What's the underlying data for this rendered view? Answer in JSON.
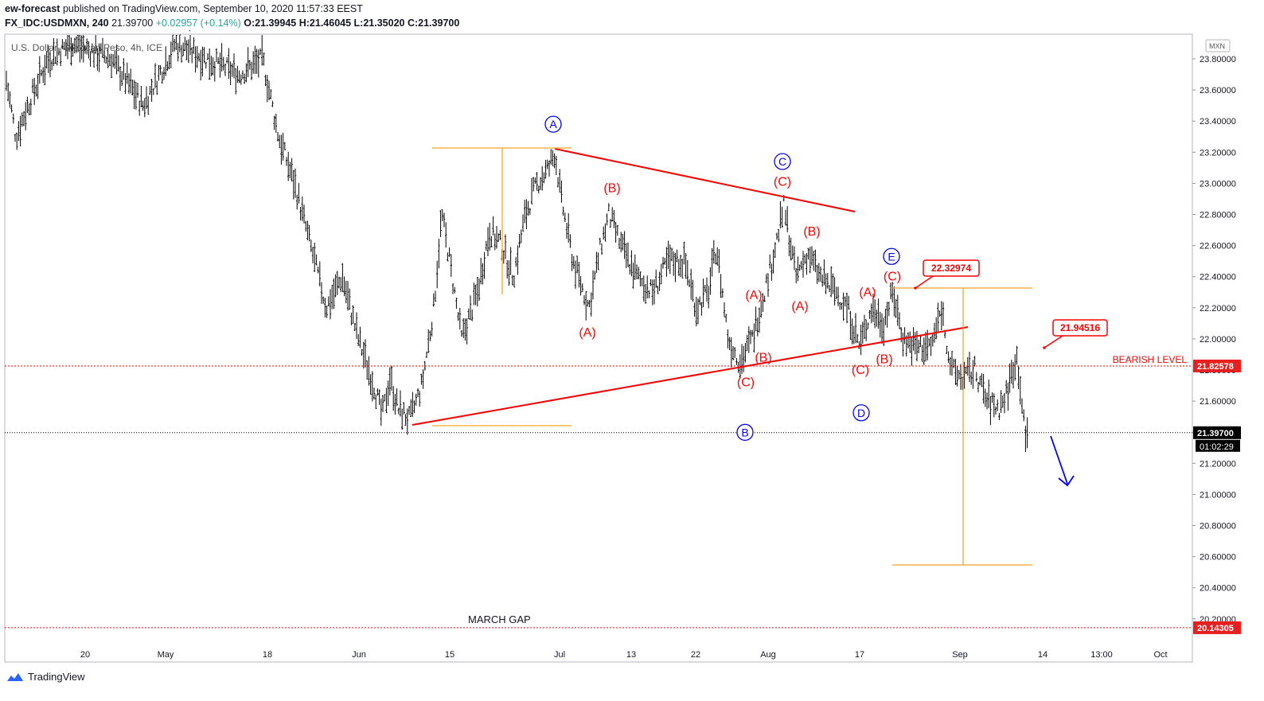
{
  "header": {
    "author": "ew-forecast",
    "published_text": "published on TradingView.com, September 10, 2020 11:57:33 EEST",
    "symbol_line": "FX_IDC:USDMXN, 240",
    "last": "21.39700",
    "change": "+0.02957 (+0.14%)",
    "open": "O:21.39945",
    "high": "H:21.46045",
    "low": "L:21.35020",
    "close": "C:21.39700"
  },
  "watermark": "U.S. Dollar / Mexican Peso, 4h, ICE",
  "footer": {
    "brand": "TradingView"
  },
  "colors": {
    "red": "#ff0000",
    "orange": "#f5a623",
    "blue": "#0000ff",
    "bars": "#000000"
  },
  "chart_data": {
    "type": "bar",
    "title": "U.S. Dollar / Mexican Peso, 4h, ICE",
    "currency": "MXN",
    "y_ticks": [
      "23.80000",
      "23.60000",
      "23.40000",
      "23.20000",
      "23.00000",
      "22.80000",
      "22.60000",
      "22.40000",
      "22.20000",
      "22.00000",
      "21.80000",
      "21.60000",
      "21.40000",
      "21.20000",
      "21.00000",
      "20.80000",
      "20.60000",
      "20.40000",
      "20.20000"
    ],
    "x_ticks": [
      "20",
      "May",
      "18",
      "Jun",
      "15",
      "Jul",
      "13",
      "22",
      "Aug",
      "17",
      "Sep",
      "14",
      "13:00",
      "Oct"
    ],
    "ylim": [
      20.0,
      23.9
    ],
    "series": [
      {
        "values": [
          [
            0,
            23.9
          ],
          [
            20,
            23.3
          ],
          [
            35,
            23.5
          ],
          [
            60,
            23.8
          ],
          [
            90,
            23.9
          ],
          [
            140,
            23.8
          ],
          [
            180,
            23.5
          ],
          [
            220,
            23.9
          ],
          [
            260,
            23.8
          ],
          [
            300,
            23.7
          ],
          [
            330,
            23.8
          ],
          [
            350,
            23.3
          ],
          [
            370,
            23.0
          ],
          [
            390,
            22.6
          ],
          [
            410,
            22.2
          ],
          [
            430,
            22.4
          ],
          [
            450,
            22.0
          ],
          [
            470,
            21.7
          ],
          [
            480,
            21.5
          ],
          [
            490,
            21.75
          ],
          [
            500,
            21.55
          ],
          [
            515,
            21.48
          ],
          [
            530,
            21.7
          ],
          [
            545,
            22.2
          ],
          [
            555,
            22.8
          ],
          [
            565,
            22.5
          ],
          [
            580,
            22.0
          ],
          [
            600,
            22.3
          ],
          [
            615,
            22.7
          ],
          [
            630,
            22.6
          ],
          [
            645,
            22.4
          ],
          [
            660,
            22.8
          ],
          [
            675,
            23.0
          ],
          [
            690,
            23.1
          ],
          [
            697,
            23.2
          ],
          [
            705,
            22.9
          ],
          [
            720,
            22.5
          ],
          [
            740,
            22.2
          ],
          [
            755,
            22.6
          ],
          [
            765,
            22.8
          ],
          [
            780,
            22.6
          ],
          [
            800,
            22.4
          ],
          [
            820,
            22.3
          ],
          [
            840,
            22.5
          ],
          [
            860,
            22.5
          ],
          [
            875,
            22.2
          ],
          [
            890,
            22.3
          ],
          [
            900,
            22.6
          ],
          [
            915,
            22.0
          ],
          [
            930,
            21.85
          ],
          [
            945,
            22.0
          ],
          [
            960,
            22.3
          ],
          [
            970,
            22.5
          ],
          [
            985,
            22.85
          ],
          [
            1000,
            22.4
          ],
          [
            1015,
            22.55
          ],
          [
            1030,
            22.4
          ],
          [
            1050,
            22.3
          ],
          [
            1065,
            22.2
          ],
          [
            1080,
            21.95
          ],
          [
            1095,
            22.2
          ],
          [
            1110,
            22.1
          ],
          [
            1122,
            22.3
          ],
          [
            1135,
            22.0
          ],
          [
            1150,
            21.95
          ],
          [
            1170,
            21.95
          ],
          [
            1183,
            22.2
          ],
          [
            1195,
            21.8
          ],
          [
            1210,
            21.75
          ],
          [
            1225,
            21.8
          ],
          [
            1240,
            21.6
          ],
          [
            1255,
            21.55
          ],
          [
            1265,
            21.65
          ],
          [
            1277,
            21.9
          ],
          [
            1282,
            21.7
          ],
          [
            1288,
            21.35
          ],
          [
            1292,
            21.39
          ]
        ]
      }
    ],
    "annotations": {
      "blue_circles": [
        {
          "label": "A",
          "price": 23.38
        },
        {
          "label": "C",
          "price": 23.14
        },
        {
          "label": "E",
          "price": 22.53
        },
        {
          "label": "D",
          "price": 21.53
        },
        {
          "label": "B",
          "price": 21.43
        }
      ],
      "red_labels": [
        {
          "label": "(B)",
          "price": 22.97
        },
        {
          "label": "(C)",
          "price": 23.01
        },
        {
          "label": "(B)",
          "price": 22.69
        },
        {
          "label": "(A)",
          "price": 22.04
        },
        {
          "label": "(A)",
          "price": 22.28
        },
        {
          "label": "(A)",
          "price": 22.21
        },
        {
          "label": "(A)",
          "price": 22.3
        },
        {
          "label": "(C)",
          "price": 22.4
        },
        {
          "label": "(B)",
          "price": 21.88
        },
        {
          "label": "(C)",
          "price": 21.72
        },
        {
          "label": "(C)",
          "price": 21.8
        },
        {
          "label": "(B)",
          "price": 21.87
        }
      ],
      "price_boxes": [
        "22.32974",
        "21.94516"
      ],
      "bearish_level": {
        "label": "BEARISH LEVEL",
        "price": "21.82578"
      },
      "march_gap": {
        "label": "MARCH GAP",
        "price": "20.14305"
      },
      "current_price": "21.39700",
      "countdown": "01:02:29"
    }
  }
}
